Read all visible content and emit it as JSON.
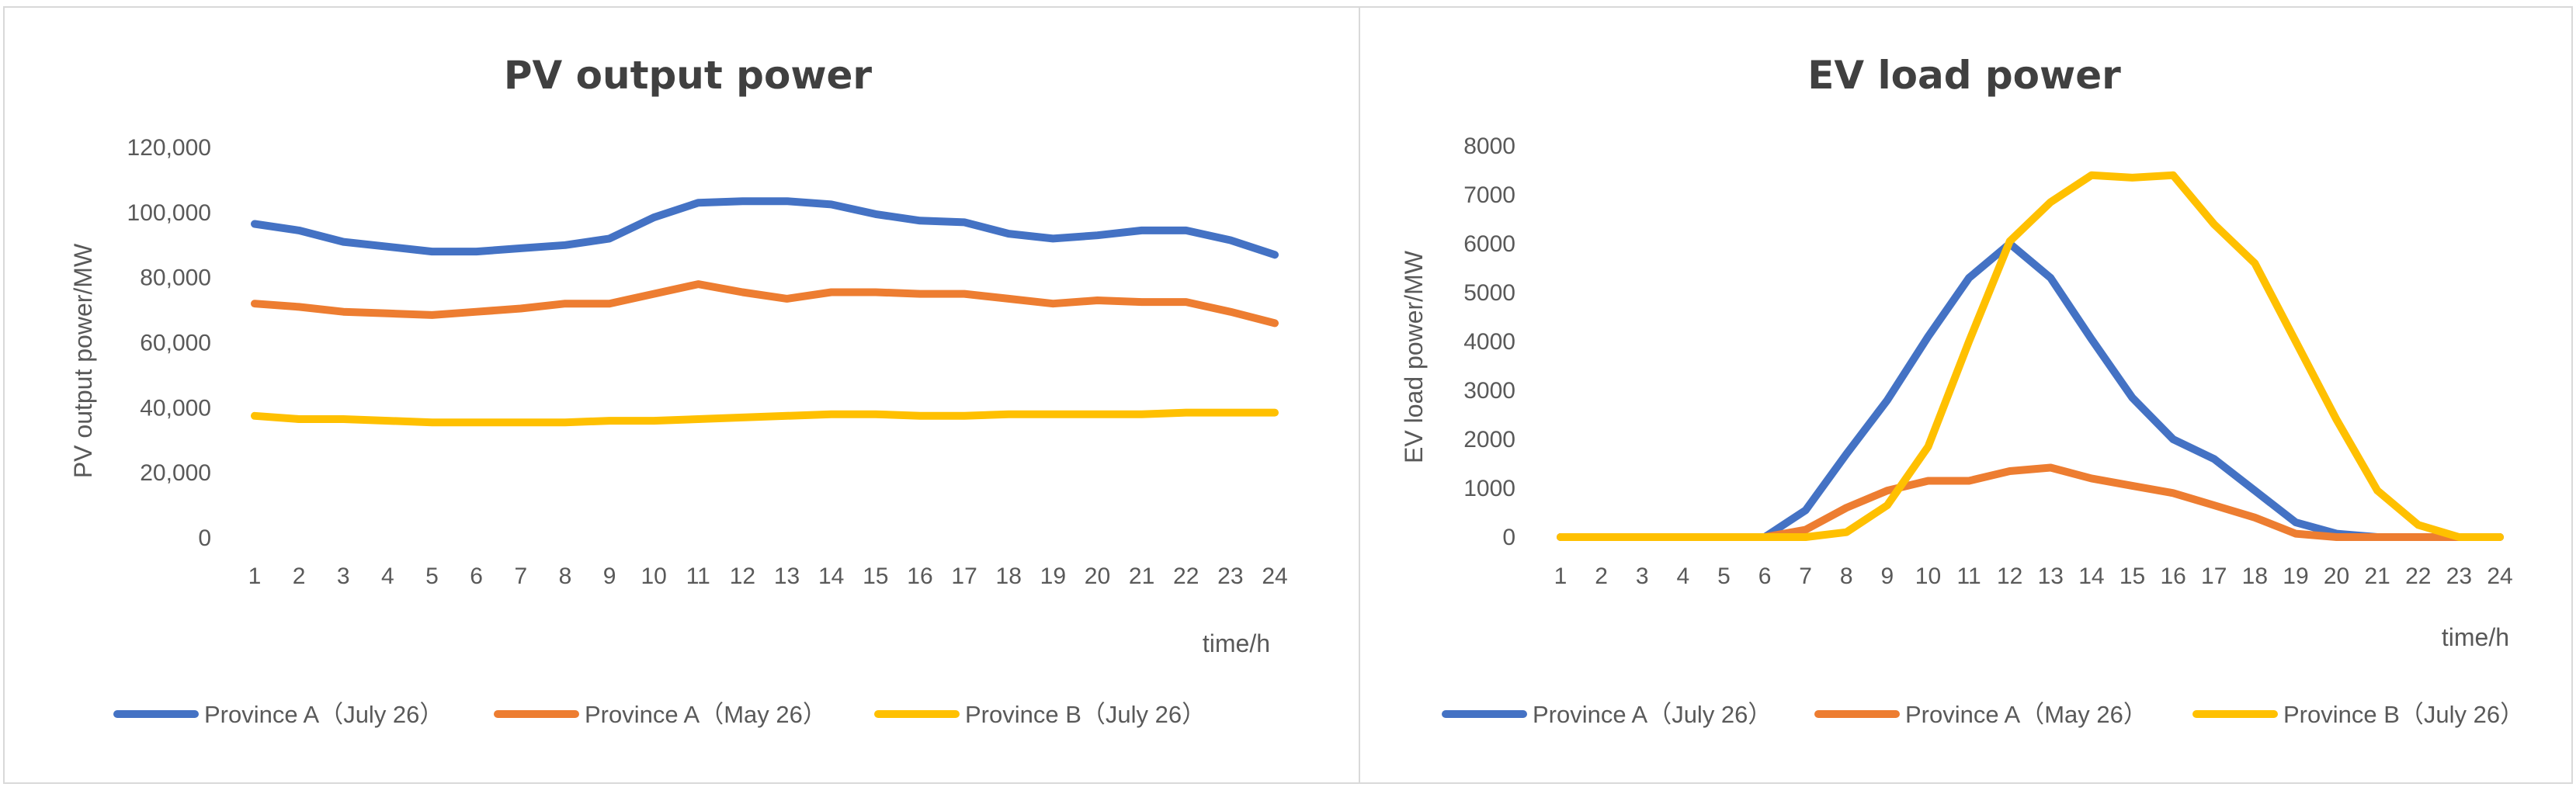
{
  "chart_data": [
    {
      "type": "line",
      "title": "PV output power",
      "xlabel": "time/h",
      "ylabel": "PV output power/MW",
      "ylim": [
        0,
        120000
      ],
      "y_ticks": [
        "0",
        "20,000",
        "40,000",
        "60,000",
        "80,000",
        "100,000",
        "120,000"
      ],
      "grid": false,
      "legend_position": "bottom",
      "x": [
        "1",
        "2",
        "3",
        "4",
        "5",
        "6",
        "7",
        "8",
        "9",
        "10",
        "11",
        "12",
        "13",
        "14",
        "15",
        "16",
        "17",
        "18",
        "19",
        "20",
        "21",
        "22",
        "23",
        "24"
      ],
      "series": [
        {
          "name": "Province A（July 26）",
          "color": "#4472c4",
          "values": [
            96500,
            94500,
            91000,
            89500,
            88000,
            88000,
            89000,
            90000,
            92000,
            98500,
            103000,
            103500,
            103500,
            102500,
            99500,
            97500,
            97000,
            93500,
            92000,
            93000,
            94500,
            94500,
            91500,
            87000
          ]
        },
        {
          "name": "Province A（May 26）",
          "color": "#ed7d31",
          "values": [
            72000,
            71000,
            69500,
            69000,
            68500,
            69500,
            70500,
            72000,
            72000,
            75000,
            78000,
            75500,
            73500,
            75500,
            75500,
            75000,
            75000,
            73500,
            72000,
            73000,
            72500,
            72500,
            69500,
            66000
          ]
        },
        {
          "name": "Province B（July 26）",
          "color": "#ffc000",
          "values": [
            37500,
            36500,
            36500,
            36000,
            35500,
            35500,
            35500,
            35500,
            36000,
            36000,
            36500,
            37000,
            37500,
            38000,
            38000,
            37500,
            37500,
            38000,
            38000,
            38000,
            38000,
            38500,
            38500,
            38500
          ]
        }
      ]
    },
    {
      "type": "line",
      "title": "EV load power",
      "xlabel": "time/h",
      "ylabel": "EV load power/MW",
      "ylim": [
        0,
        8000
      ],
      "y_ticks": [
        "0",
        "1000",
        "2000",
        "3000",
        "4000",
        "5000",
        "6000",
        "7000",
        "8000"
      ],
      "grid": false,
      "legend_position": "bottom",
      "x": [
        "1",
        "2",
        "3",
        "4",
        "5",
        "6",
        "7",
        "8",
        "9",
        "10",
        "11",
        "12",
        "13",
        "14",
        "15",
        "16",
        "17",
        "18",
        "19",
        "20",
        "21",
        "22",
        "23",
        "24"
      ],
      "series": [
        {
          "name": "Province A（July 26）",
          "color": "#4472c4",
          "values": [
            0,
            0,
            0,
            0,
            0,
            0,
            550,
            1700,
            2800,
            4100,
            5300,
            6000,
            5300,
            4050,
            2850,
            2000,
            1600,
            950,
            300,
            70,
            0,
            0,
            0,
            0
          ]
        },
        {
          "name": "Province A（May 26）",
          "color": "#ed7d31",
          "values": [
            0,
            0,
            0,
            0,
            0,
            0,
            150,
            600,
            950,
            1150,
            1150,
            1350,
            1420,
            1200,
            1050,
            900,
            650,
            400,
            70,
            0,
            0,
            0,
            0,
            0
          ]
        },
        {
          "name": "Province B（July 26）",
          "color": "#ffc000",
          "values": [
            0,
            0,
            0,
            0,
            0,
            0,
            0,
            100,
            650,
            1850,
            4000,
            6050,
            6850,
            7400,
            7350,
            7400,
            6400,
            5600,
            4000,
            2400,
            950,
            250,
            0,
            0
          ]
        }
      ]
    }
  ]
}
